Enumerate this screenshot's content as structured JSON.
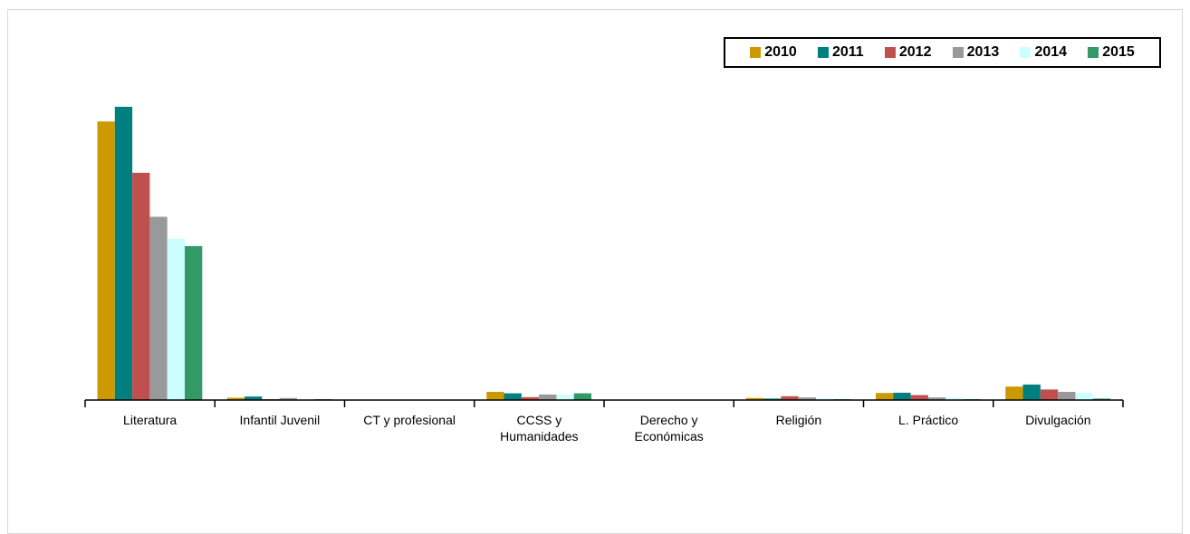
{
  "chart_data": {
    "type": "bar",
    "categories": [
      "Literatura",
      "Infantil Juvenil",
      "CT y profesional",
      "CCSS y Humanidades",
      "Derecho y Económicas",
      "Religión",
      "L. Práctico",
      "Divulgación"
    ],
    "category_lines": [
      [
        "Literatura"
      ],
      [
        "Infantil Juvenil"
      ],
      [
        "CT y profesional"
      ],
      [
        "CCSS y",
        "Humanidades"
      ],
      [
        "Derecho y",
        "Económicas"
      ],
      [
        "Religión"
      ],
      [
        "L. Práctico"
      ],
      [
        "Divulgación"
      ]
    ],
    "series": [
      {
        "name": "2010",
        "color": "#cc9900",
        "values": [
          95.0,
          0.8,
          0.0,
          2.8,
          0.0,
          0.7,
          2.4,
          4.6
        ]
      },
      {
        "name": "2011",
        "color": "#007f7f",
        "values": [
          100.0,
          1.2,
          0.0,
          2.3,
          0.0,
          0.5,
          2.5,
          5.3
        ]
      },
      {
        "name": "2012",
        "color": "#c0504d",
        "values": [
          77.5,
          0.3,
          0.0,
          1.0,
          0.0,
          1.3,
          1.7,
          3.6
        ]
      },
      {
        "name": "2013",
        "color": "#999999",
        "values": [
          62.5,
          0.7,
          0.0,
          1.9,
          0.0,
          0.9,
          0.9,
          2.8
        ]
      },
      {
        "name": "2014",
        "color": "#ccffff",
        "values": [
          55.0,
          0.2,
          0.0,
          1.8,
          0.0,
          0.6,
          0.8,
          2.4
        ]
      },
      {
        "name": "2015",
        "color": "#339966",
        "values": [
          52.5,
          0.3,
          0.0,
          2.3,
          0.0,
          0.3,
          0.3,
          0.5
        ]
      }
    ],
    "title": "",
    "xlabel": "",
    "ylabel": "",
    "ylim": [
      0,
      100
    ],
    "grid": false,
    "legend_position": "top-right"
  }
}
